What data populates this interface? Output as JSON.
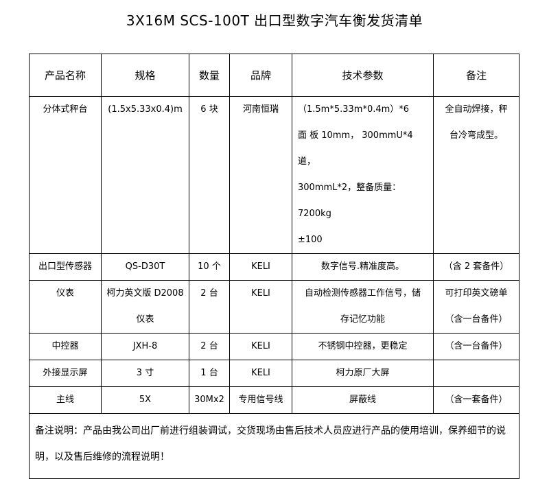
{
  "title": "3X16M SCS-100T 出口型数字汽车衡发货清单",
  "headers": [
    "产品名称",
    "规格",
    "数量",
    "品牌",
    "技术参数",
    "备注"
  ],
  "rows": [
    {
      "name": "分体式秤台",
      "spec": [
        "(1.5x5.33x0.4)m"
      ],
      "qty": "6 块",
      "brand": "河南恒瑞",
      "tech": [
        "（1.5m*5.33m*0.4m）*6",
        "面 板 10mm， 300mmU*4 道，",
        "300mmL*2，整备质量：7200kg",
        "±100"
      ],
      "note": [
        "全自动焊接，秤",
        "台冷弯成型。"
      ]
    },
    {
      "name": "出口型传感器",
      "spec": [
        "QS-D30T"
      ],
      "qty": "10 个",
      "brand": "KELI",
      "tech": [
        "数字信号.精准度高。"
      ],
      "note": [
        "（含 2 套备件）"
      ]
    },
    {
      "name": "仪表",
      "spec": [
        "柯力英文版 D2008",
        "仪表"
      ],
      "qty": "2 台",
      "brand": "KELI",
      "tech": [
        "自动检测传感器工作信号，储",
        "存记忆功能"
      ],
      "note": [
        "可打印英文磅单",
        "（含一台备件）"
      ]
    },
    {
      "name": "中控器",
      "spec": [
        "JXH-8"
      ],
      "qty": "2 台",
      "brand": "KELI",
      "tech": [
        "不锈钢中控器，更稳定"
      ],
      "note": [
        "（含一台备件）"
      ]
    },
    {
      "name": "外接显示屏",
      "spec": [
        "3 寸"
      ],
      "qty": "1 台",
      "brand": "KELI",
      "tech": [
        "柯力原厂大屏"
      ],
      "note": [
        ""
      ]
    },
    {
      "name": "主线",
      "spec": [
        "5X"
      ],
      "qty": "30Mx2",
      "brand": "专用信号线",
      "tech": [
        "屏蔽线"
      ],
      "note": [
        "（含一套备件）"
      ]
    }
  ],
  "remark": "备注说明：产品由我公司出厂前进行组装调试，交货现场由售后技术人员应进行产品的使用培训，保养细节的说明，以及售后维修的流程说明！"
}
